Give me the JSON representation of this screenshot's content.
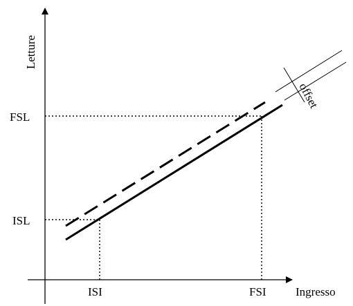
{
  "axes": {
    "y_label": "Letture",
    "x_label": "Ingresso"
  },
  "ticks": {
    "fsl": "FSL",
    "isl": "ISL",
    "isi": "ISI",
    "fsi": "FSI"
  },
  "annotation": {
    "offset": "offset"
  },
  "lines": {
    "ideal_style": "dashed",
    "actual_style": "solid",
    "color": "#000000"
  }
}
